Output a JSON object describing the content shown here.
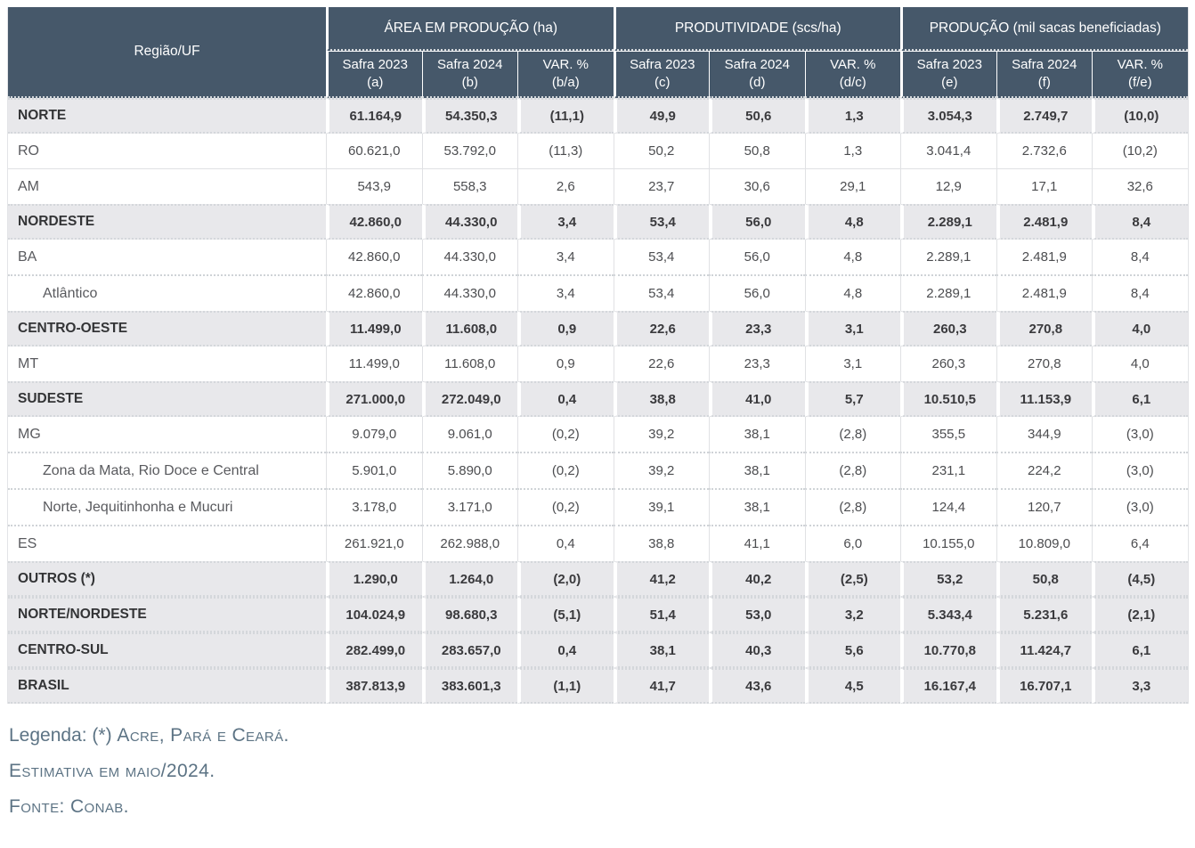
{
  "chart_data": {
    "type": "table",
    "corner_header": "Região/UF",
    "column_groups": [
      "ÁREA EM PRODUÇÃO (ha)",
      "PRODUTIVIDADE (scs/ha)",
      "PRODUÇÃO (mil sacas beneficiadas)"
    ],
    "subcolumns": [
      {
        "title": "Safra 2023",
        "key": "(a)"
      },
      {
        "title": "Safra 2024",
        "key": "(b)"
      },
      {
        "title": "VAR. %",
        "key": "(b/a)"
      },
      {
        "title": "Safra 2023",
        "key": "(c)"
      },
      {
        "title": "Safra 2024",
        "key": "(d)"
      },
      {
        "title": "VAR. %",
        "key": "(d/c)"
      },
      {
        "title": "Safra 2023",
        "key": "(e)"
      },
      {
        "title": "Safra 2024",
        "key": "(f)"
      },
      {
        "title": "VAR. %",
        "key": "(f/e)"
      }
    ],
    "rows": [
      {
        "label": "NORTE",
        "level": "region",
        "values": [
          "61.164,9",
          "54.350,3",
          "(11,1)",
          "49,9",
          "50,6",
          "1,3",
          "3.054,3",
          "2.749,7",
          "(10,0)"
        ]
      },
      {
        "label": "RO",
        "level": "state",
        "values": [
          "60.621,0",
          "53.792,0",
          "(11,3)",
          "50,2",
          "50,8",
          "1,3",
          "3.041,4",
          "2.732,6",
          "(10,2)"
        ]
      },
      {
        "label": "AM",
        "level": "state",
        "values": [
          "543,9",
          "558,3",
          "2,6",
          "23,7",
          "30,6",
          "29,1",
          "12,9",
          "17,1",
          "32,6"
        ]
      },
      {
        "label": "NORDESTE",
        "level": "region",
        "values": [
          "42.860,0",
          "44.330,0",
          "3,4",
          "53,4",
          "56,0",
          "4,8",
          "2.289,1",
          "2.481,9",
          "8,4"
        ]
      },
      {
        "label": "BA",
        "level": "state",
        "values": [
          "42.860,0",
          "44.330,0",
          "3,4",
          "53,4",
          "56,0",
          "4,8",
          "2.289,1",
          "2.481,9",
          "8,4"
        ]
      },
      {
        "label": "Atlântico",
        "level": "subregion",
        "values": [
          "42.860,0",
          "44.330,0",
          "3,4",
          "53,4",
          "56,0",
          "4,8",
          "2.289,1",
          "2.481,9",
          "8,4"
        ]
      },
      {
        "label": "CENTRO-OESTE",
        "level": "region",
        "values": [
          "11.499,0",
          "11.608,0",
          "0,9",
          "22,6",
          "23,3",
          "3,1",
          "260,3",
          "270,8",
          "4,0"
        ]
      },
      {
        "label": "MT",
        "level": "state",
        "values": [
          "11.499,0",
          "11.608,0",
          "0,9",
          "22,6",
          "23,3",
          "3,1",
          "260,3",
          "270,8",
          "4,0"
        ]
      },
      {
        "label": "SUDESTE",
        "level": "region",
        "values": [
          "271.000,0",
          "272.049,0",
          "0,4",
          "38,8",
          "41,0",
          "5,7",
          "10.510,5",
          "11.153,9",
          "6,1"
        ]
      },
      {
        "label": "MG",
        "level": "state",
        "values": [
          "9.079,0",
          "9.061,0",
          "(0,2)",
          "39,2",
          "38,1",
          "(2,8)",
          "355,5",
          "344,9",
          "(3,0)"
        ]
      },
      {
        "label": "Zona da Mata, Rio Doce e Central",
        "level": "subregion",
        "values": [
          "5.901,0",
          "5.890,0",
          "(0,2)",
          "39,2",
          "38,1",
          "(2,8)",
          "231,1",
          "224,2",
          "(3,0)"
        ]
      },
      {
        "label": "Norte, Jequitinhonha e Mucuri",
        "level": "subregion",
        "values": [
          "3.178,0",
          "3.171,0",
          "(0,2)",
          "39,1",
          "38,1",
          "(2,8)",
          "124,4",
          "120,7",
          "(3,0)"
        ]
      },
      {
        "label": "ES",
        "level": "state",
        "values": [
          "261.921,0",
          "262.988,0",
          "0,4",
          "38,8",
          "41,1",
          "6,0",
          "10.155,0",
          "10.809,0",
          "6,4"
        ]
      },
      {
        "label": "OUTROS (*)",
        "level": "region",
        "values": [
          "1.290,0",
          "1.264,0",
          "(2,0)",
          "41,2",
          "40,2",
          "(2,5)",
          "53,2",
          "50,8",
          "(4,5)"
        ]
      },
      {
        "label": "NORTE/NORDESTE",
        "level": "region",
        "values": [
          "104.024,9",
          "98.680,3",
          "(5,1)",
          "51,4",
          "53,0",
          "3,2",
          "5.343,4",
          "5.231,6",
          "(2,1)"
        ]
      },
      {
        "label": "CENTRO-SUL",
        "level": "region",
        "values": [
          "282.499,0",
          "283.657,0",
          "0,4",
          "38,1",
          "40,3",
          "5,6",
          "10.770,8",
          "11.424,7",
          "6,1"
        ]
      },
      {
        "label": "BRASIL",
        "level": "region",
        "values": [
          "387.813,9",
          "383.601,3",
          "(1,1)",
          "41,7",
          "43,6",
          "4,5",
          "16.167,4",
          "16.707,1",
          "3,3"
        ]
      }
    ],
    "notes": {
      "legend_prefix": "Legenda: (*) ",
      "legend_caps": "Acre, Pará e Ceará.",
      "estimate": "Estimativa em maio/2024.",
      "source": "Fonte: Conab."
    }
  },
  "colors": {
    "header_bg": "#46586a",
    "header_text": "#ffffff",
    "region_row_bg": "#e8e8eb",
    "body_text": "#4c4d50",
    "border_solid": "#e0e1e4",
    "border_dotted": "#cfd3d7",
    "notes_text": "#5c7384"
  }
}
